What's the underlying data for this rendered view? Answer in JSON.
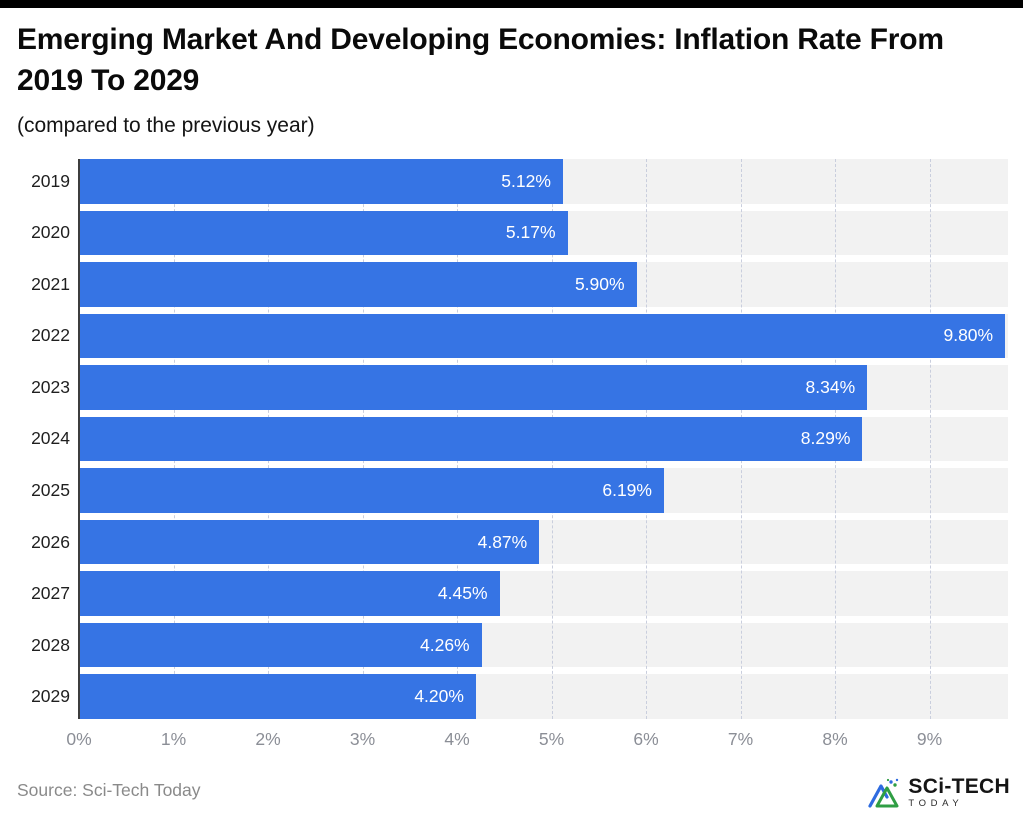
{
  "header": {
    "title": "Emerging Market And Developing Economies: Inflation Rate From 2019 To 2029",
    "subtitle": "(compared to the previous year)"
  },
  "chart_data": {
    "type": "bar",
    "orientation": "horizontal",
    "title": "Emerging Market And Developing Economies: Inflation Rate From 2019 To 2029",
    "subtitle": "(compared to the previous year)",
    "categories": [
      "2019",
      "2020",
      "2021",
      "2022",
      "2023",
      "2024",
      "2025",
      "2026",
      "2027",
      "2028",
      "2029"
    ],
    "values": [
      5.12,
      5.17,
      5.9,
      9.8,
      8.34,
      8.29,
      6.19,
      4.87,
      4.45,
      4.26,
      4.2
    ],
    "value_labels": [
      "5.12%",
      "5.17%",
      "5.90%",
      "9.80%",
      "8.34%",
      "8.29%",
      "6.19%",
      "4.87%",
      "4.45%",
      "4.26%",
      "4.20%"
    ],
    "x_ticks": [
      "0%",
      "1%",
      "2%",
      "3%",
      "4%",
      "5%",
      "6%",
      "7%",
      "8%",
      "9%"
    ],
    "x_tick_values": [
      0,
      1,
      2,
      3,
      4,
      5,
      6,
      7,
      8,
      9
    ],
    "xlim": [
      0,
      9.83
    ],
    "xlabel": "",
    "ylabel": "",
    "grid": "vertical-dashed",
    "legend": "none",
    "bar_color": "#3674e4",
    "track_color": "#f2f2f2",
    "value_label_color": "#ffffff"
  },
  "footer": {
    "source": "Source: Sci-Tech Today",
    "logo": {
      "line1": "SCi-TECH",
      "line2": "TODAY"
    }
  }
}
